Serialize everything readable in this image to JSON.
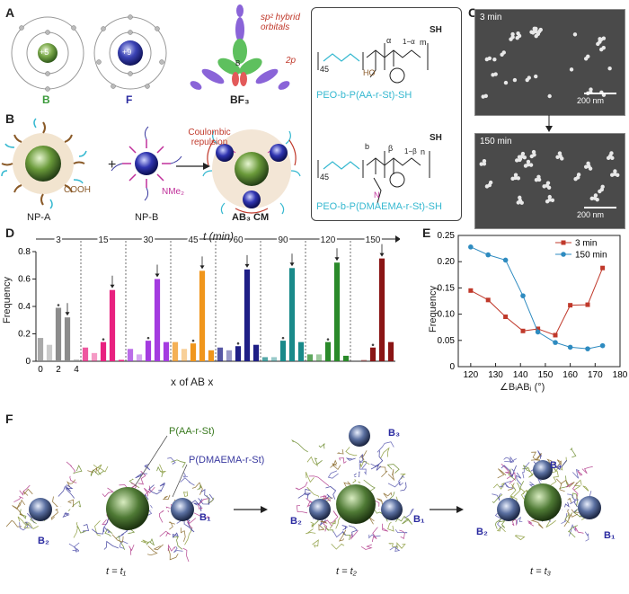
{
  "panels": {
    "A": "A",
    "B": "B",
    "C": "C",
    "D": "D",
    "E": "E",
    "F": "F"
  },
  "panelA": {
    "atom_B_label": "B",
    "atom_B_core": "+5",
    "atom_F_label": "F",
    "atom_F_core": "+9",
    "bf3_label": "BF₃",
    "sp2_note": "sp² hybrid orbitals",
    "p2_note": "2p",
    "atom_B_letter": "B",
    "F_letter": "F"
  },
  "panelB": {
    "np_a": "NP-A",
    "np_b": "NP-B",
    "cm": "AB₃ CM",
    "cooh": "COOH",
    "nme2": "NMe₂",
    "coulombic": "Coulombic repulsion",
    "plus": "+"
  },
  "polymers": {
    "peo_aa": "PEO-b-P(AA-r-St)-SH",
    "peo_dmaema": "PEO-b-P(DMAEMA-r-St)-SH",
    "n45a": "45",
    "n45b": "45",
    "sh1": "SH",
    "sh2": "SH",
    "alpha": "α",
    "beta": "β",
    "m1": "1−α",
    "m2": "1−β",
    "mm": "m",
    "nn": "n",
    "b": "b",
    "r": "r",
    "ho": "HO",
    "o": "O",
    "n_atom": "N"
  },
  "panelC": {
    "t1": "3 min",
    "t2": "150 min",
    "scale1": "200 nm",
    "scale2": "200 nm"
  },
  "chart_data": [
    {
      "type": "bar",
      "panel": "D",
      "title": "t (min)",
      "ylabel": "Frequency",
      "xlabel": "x of AB x",
      "ylim": [
        0,
        0.8
      ],
      "yticks": [
        "0",
        "0.2",
        "0.4",
        "0.6",
        "0.8"
      ],
      "categories": [
        "0",
        "1",
        "2",
        "3",
        "4"
      ],
      "xtick_labels": [
        "0",
        "2",
        "4"
      ],
      "series": [
        {
          "name": "3",
          "color": "#8c8c8c",
          "values": [
            0.17,
            0.12,
            0.39,
            0.32,
            0.01
          ]
        },
        {
          "name": "15",
          "color": "#e8207f",
          "values": [
            0.1,
            0.06,
            0.14,
            0.52,
            0.01
          ]
        },
        {
          "name": "30",
          "color": "#a43be0",
          "values": [
            0.09,
            0.05,
            0.15,
            0.6,
            0.14
          ]
        },
        {
          "name": "45",
          "color": "#f0961c",
          "values": [
            0.14,
            0.09,
            0.13,
            0.66,
            0.08
          ]
        },
        {
          "name": "60",
          "color": "#1f1f86",
          "values": [
            0.1,
            0.08,
            0.11,
            0.67,
            0.12
          ]
        },
        {
          "name": "90",
          "color": "#1a8a8a",
          "values": [
            0.03,
            0.03,
            0.15,
            0.68,
            0.14
          ]
        },
        {
          "name": "120",
          "color": "#2a8a2a",
          "values": [
            0.05,
            0.05,
            0.14,
            0.72,
            0.04
          ]
        },
        {
          "name": "150",
          "color": "#8a1515",
          "values": [
            0.0,
            0.01,
            0.1,
            0.75,
            0.14
          ]
        }
      ]
    },
    {
      "type": "line",
      "panel": "E",
      "xlabel": "∠BᵢABⱼ (°)",
      "ylabel": "Frequency",
      "xlim": [
        115,
        180
      ],
      "ylim": [
        0,
        0.25
      ],
      "xticks": [
        120,
        130,
        140,
        150,
        160,
        170,
        180
      ],
      "yticks": [
        "0",
        "0.05",
        "0.10",
        "0.15",
        "0.20",
        "0.25"
      ],
      "series": [
        {
          "name": "3 min",
          "color": "#c0392b",
          "marker": "square",
          "x": [
            120,
            127,
            134,
            141,
            147,
            154,
            160,
            167,
            173
          ],
          "y": [
            0.145,
            0.127,
            0.095,
            0.068,
            0.072,
            0.06,
            0.117,
            0.118,
            0.188
          ]
        },
        {
          "name": "150 min",
          "color": "#2e8bc0",
          "marker": "circle",
          "x": [
            120,
            127,
            134,
            141,
            147,
            154,
            160,
            167,
            173
          ],
          "y": [
            0.228,
            0.213,
            0.203,
            0.135,
            0.066,
            0.046,
            0.037,
            0.034,
            0.04
          ]
        }
      ]
    }
  ],
  "panelF": {
    "paa": "P(AA-r-St)",
    "pdm": "P(DMAEMA-r-St)",
    "b1a": "B₁",
    "b2a": "B₂",
    "b1b": "B₁",
    "b2b": "B₂",
    "b3b": "B₃",
    "b1c": "B₁",
    "b2c": "B₂",
    "b3c": "B₃",
    "t1": "t = t₁",
    "t2": "t = t₂",
    "t3": "t = t₃"
  },
  "colors": {
    "accent_green": "#3a9a3a",
    "accent_blue": "#2a2aa0",
    "red_note": "#c0392b",
    "cyan": "#35b8d0",
    "magenta": "#c0309a"
  }
}
